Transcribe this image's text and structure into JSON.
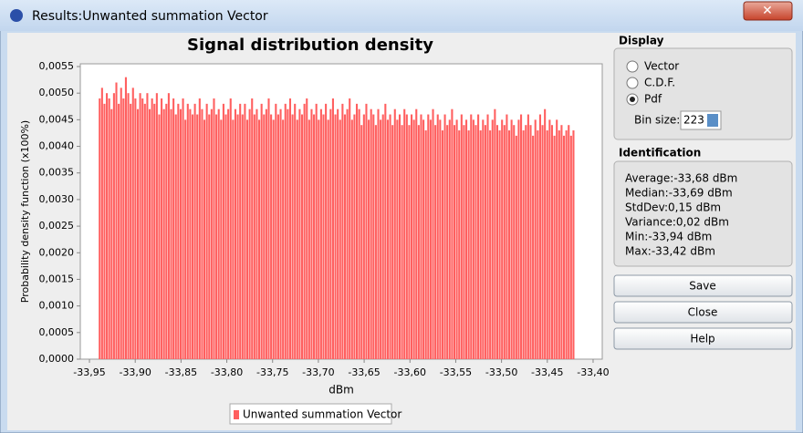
{
  "window": {
    "title": "Results:Unwanted summation Vector"
  },
  "chart_data": {
    "type": "histogram",
    "title": "Signal distribution density",
    "x_label": "dBm",
    "y_label": "Probability density function (x100%)",
    "bins": [
      -33.94,
      -33.9374,
      -33.9348,
      -33.9322,
      -33.9296,
      -33.927,
      -33.9244,
      -33.9218,
      -33.9192,
      -33.9166,
      -33.914,
      -33.9114,
      -33.9088,
      -33.9062,
      -33.9036,
      -33.901,
      -33.8984,
      -33.8958,
      -33.8932,
      -33.8906,
      -33.888,
      -33.8854,
      -33.8828,
      -33.8802,
      -33.8776,
      -33.875,
      -33.8724,
      -33.8698,
      -33.8672,
      -33.8646,
      -33.862,
      -33.8594,
      -33.8568,
      -33.8542,
      -33.8516,
      -33.849,
      -33.8464,
      -33.8438,
      -33.8412,
      -33.8386,
      -33.836,
      -33.8334,
      -33.8308,
      -33.8282,
      -33.8256,
      -33.823,
      -33.8204,
      -33.8178,
      -33.8152,
      -33.8126,
      -33.81,
      -33.8074,
      -33.8048,
      -33.8022,
      -33.7996,
      -33.797,
      -33.7944,
      -33.7918,
      -33.7892,
      -33.7866,
      -33.784,
      -33.7814,
      -33.7788,
      -33.7762,
      -33.7736,
      -33.771,
      -33.7684,
      -33.7658,
      -33.7632,
      -33.7606,
      -33.758,
      -33.7554,
      -33.7528,
      -33.7502,
      -33.7476,
      -33.745,
      -33.7424,
      -33.7398,
      -33.7372,
      -33.7346,
      -33.732,
      -33.7294,
      -33.7268,
      -33.7242,
      -33.7216,
      -33.719,
      -33.7164,
      -33.7138,
      -33.7112,
      -33.7086,
      -33.706,
      -33.7034,
      -33.7008,
      -33.6982,
      -33.6956,
      -33.693,
      -33.6904,
      -33.6878,
      -33.6852,
      -33.6826,
      -33.68,
      -33.6774,
      -33.6748,
      -33.6722,
      -33.6696,
      -33.667,
      -33.6644,
      -33.6618,
      -33.6592,
      -33.6566,
      -33.654,
      -33.6514,
      -33.6488,
      -33.6462,
      -33.6436,
      -33.641,
      -33.6384,
      -33.6358,
      -33.6332,
      -33.6306,
      -33.628,
      -33.6254,
      -33.6228,
      -33.6202,
      -33.6176,
      -33.615,
      -33.6124,
      -33.6098,
      -33.6072,
      -33.6046,
      -33.602,
      -33.5994,
      -33.5968,
      -33.5942,
      -33.5916,
      -33.589,
      -33.5864,
      -33.5838,
      -33.5812,
      -33.5786,
      -33.576,
      -33.5734,
      -33.5708,
      -33.5682,
      -33.5656,
      -33.563,
      -33.5604,
      -33.5578,
      -33.5552,
      -33.5526,
      -33.55,
      -33.5474,
      -33.5448,
      -33.5422,
      -33.5396,
      -33.537,
      -33.5344,
      -33.5318,
      -33.5292,
      -33.5266,
      -33.524,
      -33.5214,
      -33.5188,
      -33.5162,
      -33.5136,
      -33.511,
      -33.5084,
      -33.5058,
      -33.5032,
      -33.5006,
      -33.498,
      -33.4954,
      -33.4928,
      -33.4902,
      -33.4876,
      -33.485,
      -33.4824,
      -33.4798,
      -33.4772,
      -33.4746,
      -33.472,
      -33.4694,
      -33.4668,
      -33.4642,
      -33.4616,
      -33.459,
      -33.4564,
      -33.4538,
      -33.4512,
      -33.4486,
      -33.446,
      -33.4434,
      -33.4408,
      -33.4382,
      -33.4356,
      -33.433,
      -33.4304,
      -33.4278,
      -33.4252,
      -33.4226,
      -33.42
    ],
    "series": [
      {
        "name": "Unwanted summation Vector",
        "color": "#ff5f5f",
        "values": [
          0.0049,
          0.0051,
          0.0048,
          0.005,
          0.0049,
          0.0047,
          0.005,
          0.0052,
          0.0048,
          0.0051,
          0.0049,
          0.0053,
          0.005,
          0.0048,
          0.0051,
          0.0049,
          0.0047,
          0.005,
          0.0049,
          0.0048,
          0.005,
          0.0047,
          0.0049,
          0.0048,
          0.005,
          0.0046,
          0.0049,
          0.0047,
          0.0048,
          0.005,
          0.0047,
          0.0049,
          0.0046,
          0.0048,
          0.0047,
          0.0049,
          0.0045,
          0.0048,
          0.0047,
          0.0046,
          0.0048,
          0.0046,
          0.0049,
          0.0047,
          0.0045,
          0.0048,
          0.0046,
          0.0047,
          0.0049,
          0.0046,
          0.0047,
          0.0045,
          0.0048,
          0.0046,
          0.0047,
          0.0049,
          0.0045,
          0.0047,
          0.0046,
          0.0048,
          0.0046,
          0.0048,
          0.0045,
          0.0047,
          0.0049,
          0.0046,
          0.0047,
          0.0045,
          0.0048,
          0.0046,
          0.0047,
          0.0049,
          0.0046,
          0.0045,
          0.0048,
          0.0046,
          0.0047,
          0.0045,
          0.0048,
          0.0047,
          0.0049,
          0.0046,
          0.0048,
          0.0045,
          0.0047,
          0.0046,
          0.0048,
          0.0049,
          0.0045,
          0.0047,
          0.0046,
          0.0048,
          0.0045,
          0.0047,
          0.0046,
          0.0048,
          0.0045,
          0.0047,
          0.0049,
          0.0046,
          0.0047,
          0.0045,
          0.0048,
          0.0046,
          0.0047,
          0.0049,
          0.0045,
          0.0046,
          0.0048,
          0.0047,
          0.0044,
          0.0046,
          0.0048,
          0.0045,
          0.0047,
          0.0046,
          0.0044,
          0.0047,
          0.0045,
          0.0046,
          0.0048,
          0.0045,
          0.0046,
          0.0044,
          0.0047,
          0.0045,
          0.0046,
          0.0044,
          0.0047,
          0.0046,
          0.0044,
          0.0046,
          0.0045,
          0.0047,
          0.0044,
          0.0046,
          0.0045,
          0.0043,
          0.0046,
          0.0045,
          0.0047,
          0.0044,
          0.0046,
          0.0045,
          0.0043,
          0.0046,
          0.0044,
          0.0045,
          0.0047,
          0.0044,
          0.0045,
          0.0043,
          0.0046,
          0.0044,
          0.0045,
          0.0043,
          0.0046,
          0.0045,
          0.0044,
          0.0046,
          0.0043,
          0.0045,
          0.0044,
          0.0046,
          0.0043,
          0.0045,
          0.0047,
          0.0044,
          0.0043,
          0.0045,
          0.0044,
          0.0046,
          0.0043,
          0.0045,
          0.0044,
          0.0042,
          0.0045,
          0.0046,
          0.0043,
          0.0044,
          0.0046,
          0.0044,
          0.0042,
          0.0045,
          0.0043,
          0.0046,
          0.0044,
          0.0047,
          0.0043,
          0.0045,
          0.0044,
          0.0042,
          0.0045,
          0.0043,
          0.0044,
          0.0042,
          0.0043,
          0.0044,
          0.0042,
          0.0043
        ]
      }
    ],
    "xlim": [
      -33.96,
      -33.39
    ],
    "ylim": [
      0,
      0.0055
    ],
    "xticks": [
      {
        "value": -33.95,
        "label": "-33,95"
      },
      {
        "value": -33.9,
        "label": "-33,90"
      },
      {
        "value": -33.85,
        "label": "-33,85"
      },
      {
        "value": -33.8,
        "label": "-33,80"
      },
      {
        "value": -33.75,
        "label": "-33,75"
      },
      {
        "value": -33.7,
        "label": "-33,70"
      },
      {
        "value": -33.65,
        "label": "-33,65"
      },
      {
        "value": -33.6,
        "label": "-33,60"
      },
      {
        "value": -33.55,
        "label": "-33,55"
      },
      {
        "value": -33.5,
        "label": "-33,50"
      },
      {
        "value": -33.45,
        "label": "-33,45"
      },
      {
        "value": -33.4,
        "label": "-33,40"
      }
    ],
    "yticks": [
      {
        "value": 0,
        "label": "0,0000"
      },
      {
        "value": 0.0005,
        "label": "0,0005"
      },
      {
        "value": 0.001,
        "label": "0,0010"
      },
      {
        "value": 0.0015,
        "label": "0,0015"
      },
      {
        "value": 0.002,
        "label": "0,0020"
      },
      {
        "value": 0.0025,
        "label": "0,0025"
      },
      {
        "value": 0.003,
        "label": "0,0030"
      },
      {
        "value": 0.0035,
        "label": "0,0035"
      },
      {
        "value": 0.004,
        "label": "0,0040"
      },
      {
        "value": 0.0045,
        "label": "0,0045"
      },
      {
        "value": 0.005,
        "label": "0,0050"
      },
      {
        "value": 0.0055,
        "label": "0,0055"
      }
    ]
  },
  "display": {
    "heading": "Display",
    "options": [
      "Vector",
      "C.D.F.",
      "Pdf"
    ],
    "selected": 2,
    "bin_size_label": "Bin size:",
    "bin_size": "223"
  },
  "identification": {
    "heading": "Identification",
    "lines": [
      "Average:-33,68 dBm",
      "Median:-33,69 dBm",
      "StdDev:0,15 dBm",
      "Variance:0,02 dBm",
      "Min:-33,94 dBm",
      "Max:-33,42 dBm"
    ]
  },
  "buttons": [
    "Save",
    "Close",
    "Help"
  ]
}
